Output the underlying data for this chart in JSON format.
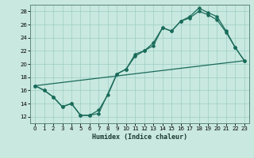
{
  "xlabel": "Humidex (Indice chaleur)",
  "bg_color": "#c8e8e0",
  "grid_color": "#9ecec4",
  "line_color": "#1a6b5a",
  "xlim": [
    -0.5,
    23.5
  ],
  "ylim": [
    11,
    29
  ],
  "xticks": [
    0,
    1,
    2,
    3,
    4,
    5,
    6,
    7,
    8,
    9,
    10,
    11,
    12,
    13,
    14,
    15,
    16,
    17,
    18,
    19,
    20,
    21,
    22,
    23
  ],
  "yticks": [
    12,
    14,
    16,
    18,
    20,
    22,
    24,
    26,
    28
  ],
  "series1_x": [
    0,
    1,
    2,
    3,
    4,
    5,
    6,
    7,
    8,
    9,
    10,
    11,
    12,
    13,
    14,
    15,
    16,
    17,
    18,
    19,
    20,
    21,
    22,
    23
  ],
  "series1_y": [
    16.7,
    16.0,
    15.0,
    13.5,
    14.0,
    12.2,
    12.2,
    13.0,
    15.3,
    18.5,
    19.2,
    21.5,
    22.0,
    23.2,
    25.5,
    25.0,
    26.5,
    27.0,
    28.0,
    27.5,
    26.7,
    24.8,
    22.5,
    20.5
  ],
  "series2_x": [
    0,
    1,
    2,
    3,
    4,
    5,
    6,
    7,
    9,
    10,
    11,
    12,
    13,
    14,
    15,
    16,
    17,
    18,
    19,
    20,
    21,
    22,
    23
  ],
  "series2_y": [
    16.7,
    16.0,
    15.0,
    13.5,
    14.0,
    12.2,
    12.2,
    12.5,
    18.5,
    19.2,
    21.2,
    22.0,
    22.8,
    25.5,
    25.0,
    26.5,
    27.2,
    28.5,
    27.8,
    27.2,
    25.0,
    22.5,
    20.5
  ],
  "series3_x": [
    0,
    23
  ],
  "series3_y": [
    16.7,
    20.5
  ]
}
